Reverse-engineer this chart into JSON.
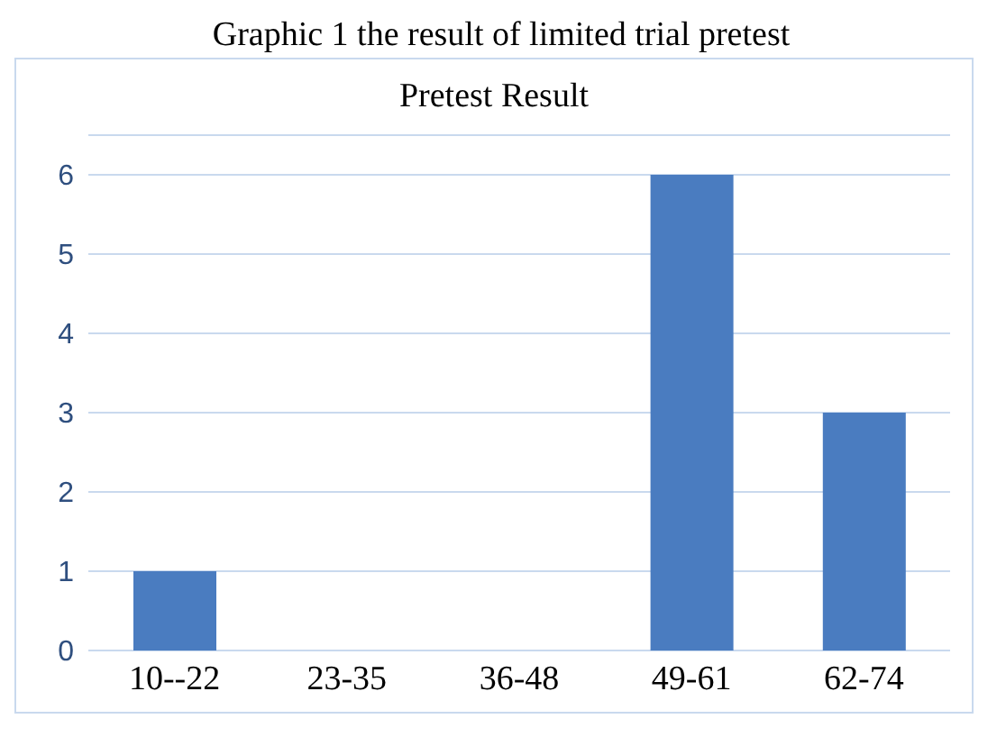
{
  "chart_data": {
    "type": "bar",
    "title": "Graphic 1 the result of limited trial pretest",
    "subtitle": "Pretest Result",
    "categories": [
      "10--22",
      "23-35",
      "36-48",
      "49-61",
      "62-74"
    ],
    "values": [
      1,
      0,
      0,
      6,
      3
    ],
    "color": "#4a7cc0",
    "ylim": [
      0,
      6.5
    ],
    "yticks": [
      0,
      1,
      2,
      3,
      4,
      5,
      6
    ],
    "grid": "y",
    "legend": false
  }
}
